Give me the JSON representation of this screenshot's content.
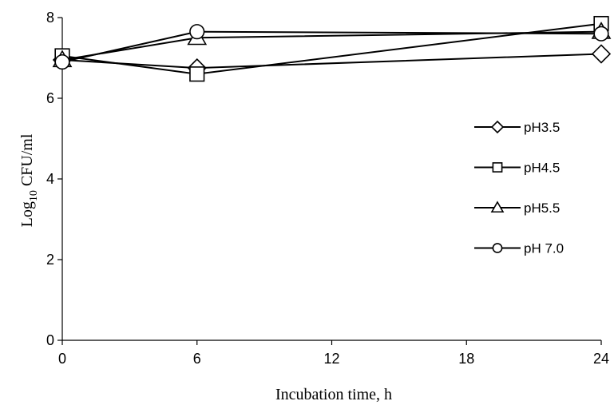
{
  "chart_data": {
    "type": "line",
    "xlabel": "Incubation time, h",
    "ylabel_main": "Log",
    "ylabel_sub": "10",
    "ylabel_rest": " CFU/ml",
    "xlim": [
      0,
      24
    ],
    "ylim": [
      0,
      8
    ],
    "xticks": [
      "0",
      "6",
      "12",
      "18",
      "24"
    ],
    "yticks": [
      "0",
      "2",
      "4",
      "6",
      "8"
    ],
    "x": [
      0,
      6,
      24
    ],
    "grid": false,
    "legend_position": "right",
    "series": [
      {
        "name": "pH3.5",
        "marker": "diamond",
        "values": [
          6.95,
          6.75,
          7.1
        ]
      },
      {
        "name": "pH4.5",
        "marker": "square",
        "values": [
          7.05,
          6.6,
          7.85
        ]
      },
      {
        "name": "pH5.5",
        "marker": "triangle",
        "values": [
          6.95,
          7.5,
          7.65
        ]
      },
      {
        "name": "pH 7.0",
        "marker": "circle",
        "values": [
          6.9,
          7.65,
          7.6
        ]
      }
    ]
  }
}
